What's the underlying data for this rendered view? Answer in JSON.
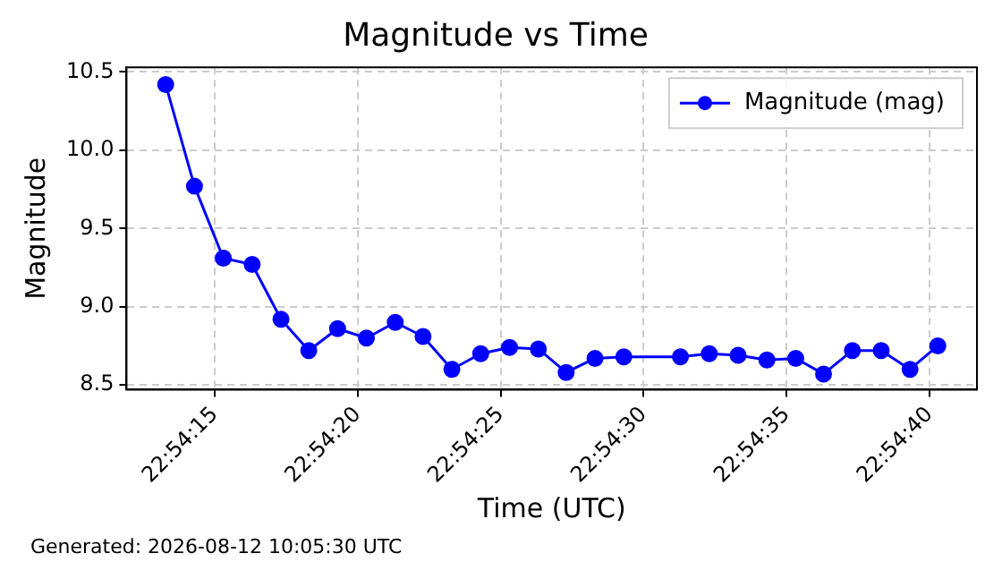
{
  "chart_data": {
    "type": "line",
    "title": "Magnitude vs Time",
    "xlabel": "Time (UTC)",
    "ylabel": "Magnitude",
    "annotations": [
      "Generated: 2026-08-12 10:05:30 UTC"
    ],
    "x": [
      22.90369,
      22.90397,
      22.90425,
      22.90453,
      22.90481,
      22.90508,
      22.90536,
      22.90564,
      22.90592,
      22.90619,
      22.90647,
      22.90675,
      22.90703,
      22.90731,
      22.90758,
      22.90786,
      22.90814,
      22.90869,
      22.90897,
      22.90925,
      22.90953,
      22.90981,
      22.91008,
      22.91036,
      22.91064,
      22.91092,
      22.91119
    ],
    "series": [
      {
        "name": "Magnitude (mag)",
        "color": "#0000ff",
        "values": [
          10.42,
          9.77,
          9.31,
          9.27,
          8.92,
          8.72,
          8.86,
          8.8,
          8.9,
          8.81,
          8.6,
          8.7,
          8.74,
          8.73,
          8.58,
          8.67,
          8.68,
          8.68,
          8.7,
          8.69,
          8.66,
          8.67,
          8.57,
          8.72,
          8.72,
          8.6,
          8.75
        ]
      }
    ],
    "xlim": [
      22.90331,
      22.91157
    ],
    "xticks": [
      {
        "value": 22.904167,
        "label": "22:54:15"
      },
      {
        "value": 22.905556,
        "label": "22:54:20"
      },
      {
        "value": 22.906944,
        "label": "22:54:25"
      },
      {
        "value": 22.908333,
        "label": "22:54:30"
      },
      {
        "value": 22.909722,
        "label": "22:54:35"
      },
      {
        "value": 22.911111,
        "label": "22:54:40"
      }
    ],
    "ylim": [
      8.47,
      10.53
    ],
    "yticks": [
      {
        "value": 8.5,
        "label": "8.5"
      },
      {
        "value": 9,
        "label": "9.0"
      },
      {
        "value": 9.5,
        "label": "9.5"
      },
      {
        "value": 10,
        "label": "10.0"
      },
      {
        "value": 10.5,
        "label": "10.5"
      }
    ],
    "grid": true,
    "legend": "top right",
    "marker": "circle",
    "line_style": "solid"
  }
}
